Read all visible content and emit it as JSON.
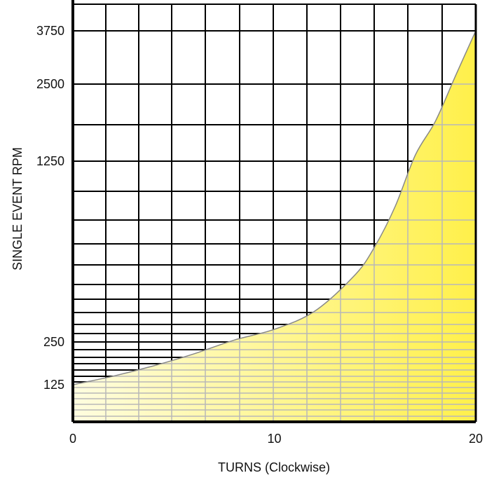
{
  "chart_data": {
    "type": "area",
    "title": "",
    "xlabel": "TURNS (Clockwise)",
    "ylabel": "SINGLE EVENT RPM",
    "xlim": [
      0,
      20
    ],
    "ylim": [
      0,
      5000
    ],
    "y_scale": "log-paper",
    "grid": true,
    "x_ticks": [
      "0",
      "10",
      "20"
    ],
    "y_ticks": [
      "125",
      "250",
      "1250",
      "2500",
      "3750"
    ],
    "series": [
      {
        "x": [
          0,
          2,
          4,
          6,
          8,
          10,
          12,
          14,
          15,
          16,
          17,
          18,
          19,
          20
        ],
        "y": [
          125,
          150,
          180,
          215,
          260,
          320,
          420,
          620,
          780,
          1000,
          1350,
          1900,
          2700,
          3750
        ]
      }
    ],
    "fill_color": "#fff04a",
    "fill_color_light": "#fffde0",
    "line_color": "#888888",
    "grid_color": "#000000"
  }
}
